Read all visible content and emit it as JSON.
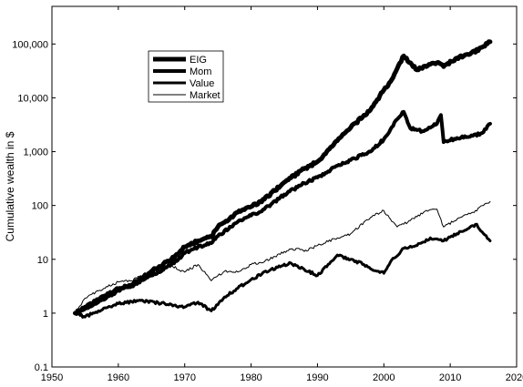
{
  "chart_data": {
    "type": "line",
    "title": "",
    "xlabel": "",
    "ylabel": "Cumulative wealth in $",
    "xlim": [
      1950,
      2020
    ],
    "ylim": [
      0.1,
      500000
    ],
    "yscale": "log",
    "grid": false,
    "legend_position": "top-left",
    "x_ticks": [
      1950,
      1960,
      1970,
      1980,
      1990,
      2000,
      2010,
      2020
    ],
    "x_tick_labels": [
      "1950",
      "1960",
      "1970",
      "1980",
      "1990",
      "2000",
      "2010",
      "2020"
    ],
    "y_ticks": [
      0.1,
      1,
      10,
      100,
      1000,
      10000,
      100000
    ],
    "y_tick_labels": [
      "0.1",
      "1",
      "10",
      "100",
      "1,000",
      "10,000",
      "100,000"
    ],
    "series": [
      {
        "name": "EIG",
        "color": "#000000",
        "x": [
          1953.5,
          1955,
          1957,
          1960,
          1962,
          1965,
          1968,
          1970,
          1972,
          1974,
          1975,
          1978,
          1980,
          1982,
          1985,
          1988,
          1990,
          1993,
          1995,
          1998,
          2000,
          2001,
          2002,
          2003,
          2005,
          2007,
          2008,
          2009,
          2011,
          2013,
          2015,
          2016
        ],
        "y": [
          1,
          1.3,
          1.8,
          2.8,
          3.3,
          6,
          10,
          17,
          22,
          26,
          40,
          75,
          95,
          130,
          270,
          480,
          650,
          1600,
          2800,
          6000,
          14000,
          20000,
          35000,
          60000,
          33000,
          42000,
          45000,
          38000,
          55000,
          65000,
          90000,
          110000
        ]
      },
      {
        "name": "Mom",
        "color": "#000000",
        "x": [
          1953.5,
          1955,
          1957,
          1960,
          1962,
          1965,
          1968,
          1970,
          1972,
          1974,
          1975,
          1978,
          1980,
          1982,
          1985,
          1988,
          1990,
          1993,
          1995,
          1998,
          2000,
          2001,
          2002,
          2003,
          2004,
          2006,
          2008,
          2008.6,
          2009,
          2011,
          2013,
          2015,
          2016
        ],
        "y": [
          1,
          1.2,
          1.6,
          2.6,
          3.2,
          5,
          8,
          13,
          17,
          20,
          27,
          50,
          65,
          85,
          160,
          260,
          330,
          550,
          700,
          1000,
          1700,
          2600,
          4000,
          5500,
          2700,
          2400,
          3300,
          4800,
          1500,
          1800,
          1900,
          2300,
          3300
        ]
      },
      {
        "name": "Value",
        "color": "#000000",
        "x": [
          1953.5,
          1955,
          1957,
          1960,
          1963,
          1967,
          1970,
          1972,
          1974,
          1976,
          1978,
          1980,
          1983,
          1986,
          1988,
          1990,
          1992,
          1993,
          1995,
          1997,
          1999,
          2000,
          2001,
          2003,
          2005,
          2007,
          2009,
          2011,
          2013,
          2014,
          2015,
          2016
        ],
        "y": [
          1,
          0.85,
          1.1,
          1.5,
          1.7,
          1.5,
          1.3,
          1.6,
          1.1,
          2.0,
          2.9,
          4.2,
          6.5,
          8.5,
          6.5,
          5.0,
          9.0,
          12.0,
          10.0,
          8.0,
          6.0,
          5.5,
          9.0,
          16.0,
          18.0,
          25.0,
          22.0,
          30.0,
          40.0,
          45.0,
          30.0,
          22.0
        ]
      },
      {
        "name": "Market",
        "color": "#000000",
        "x": [
          1953.5,
          1955,
          1957,
          1960,
          1962,
          1965,
          1968,
          1970,
          1972,
          1974,
          1976,
          1978,
          1980,
          1982,
          1985,
          1987,
          1988,
          1990,
          1993,
          1995,
          1998,
          2000,
          2002,
          2003,
          2006,
          2008,
          2009,
          2011,
          2013,
          2015,
          2016
        ],
        "y": [
          1,
          1.9,
          2.6,
          3.8,
          4.0,
          6.2,
          7.5,
          5.8,
          8.0,
          4.0,
          6.0,
          5.8,
          8.0,
          9.0,
          14.0,
          16.0,
          14.0,
          18.0,
          25.0,
          30.0,
          60.0,
          80.0,
          40.0,
          45.0,
          75.0,
          85.0,
          40.0,
          55.0,
          70.0,
          100.0,
          118.0
        ]
      }
    ]
  },
  "legend": {
    "items": [
      {
        "label": "EIG",
        "stroke_width": 5
      },
      {
        "label": "Mom",
        "stroke_width": 4
      },
      {
        "label": "Value",
        "stroke_width": 3
      },
      {
        "label": "Market",
        "stroke_width": 1
      }
    ]
  }
}
